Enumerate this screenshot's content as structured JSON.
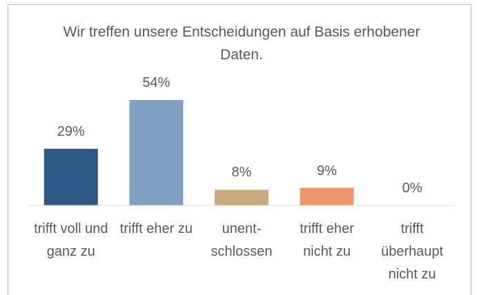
{
  "chart_data": {
    "type": "bar",
    "title": "Wir treffen unsere Entscheidungen auf Basis erhobener Daten.",
    "categories": [
      "trifft voll und ganz zu",
      "trifft eher zu",
      "unent-schlossen",
      "trifft eher nicht zu",
      "trifft überhaupt nicht zu"
    ],
    "values": [
      29,
      54,
      8,
      9,
      0
    ],
    "value_labels": [
      "29%",
      "54%",
      "8%",
      "9%",
      "0%"
    ],
    "colors": [
      "#2e5984",
      "#7fa2c2",
      "#c9ab7e",
      "#f0956a",
      "#a5a5a5"
    ],
    "ylim": [
      0,
      60
    ]
  }
}
